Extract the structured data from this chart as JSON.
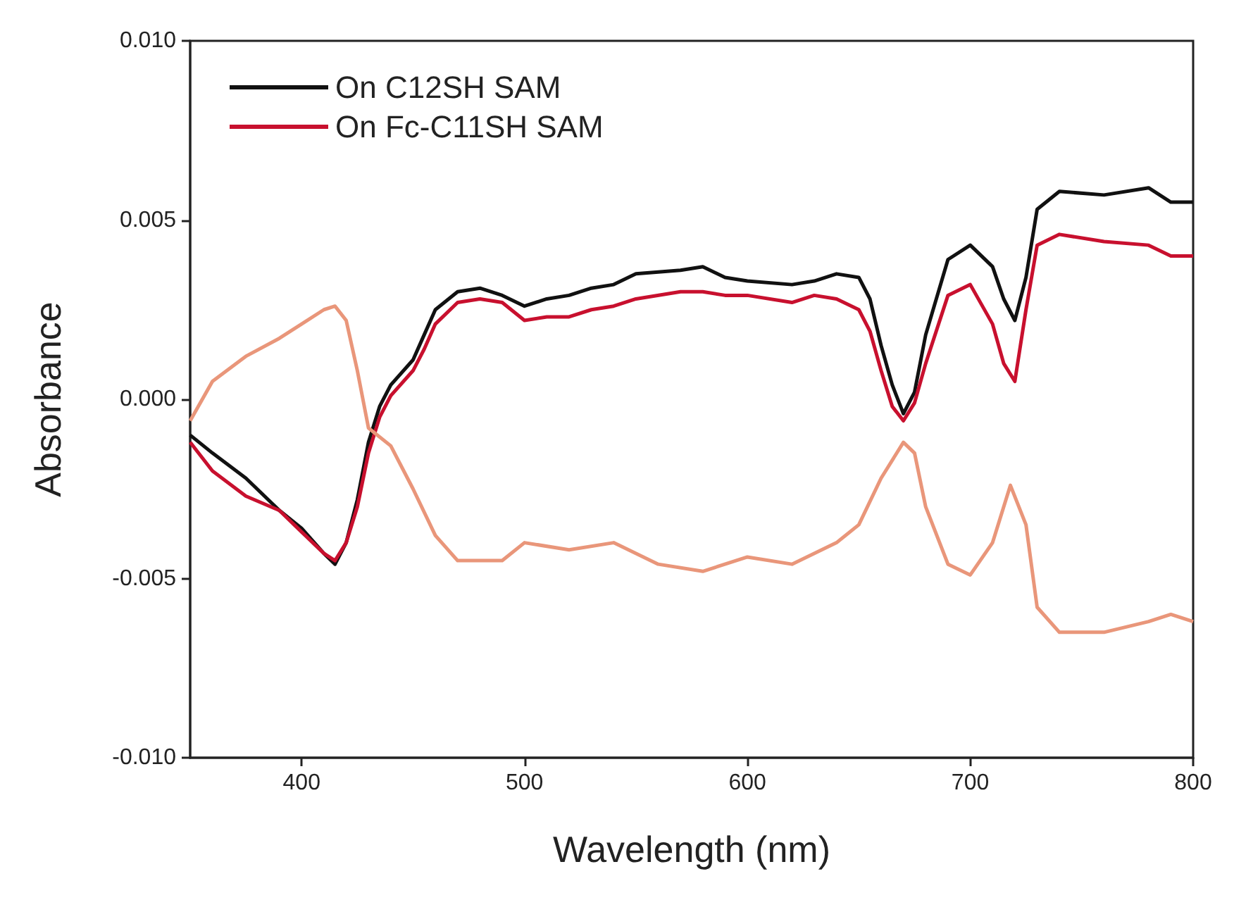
{
  "chart_data": {
    "type": "line",
    "xlabel": "Wavelength (nm)",
    "ylabel": "Absorbance",
    "legend": "top left",
    "grid": false,
    "marker": "none",
    "line_style": "solid",
    "xlim": [
      350,
      800
    ],
    "xticks": [
      400,
      500,
      600,
      700,
      800
    ],
    "ylim": [
      -0.01,
      0.01
    ],
    "yticks": [
      {
        "value": -0.01,
        "label": "-0.010"
      },
      {
        "value": -0.005,
        "label": "-0.005"
      },
      {
        "value": 0,
        "label": "0.000"
      },
      {
        "value": 0.005,
        "label": "0.005"
      },
      {
        "value": 0.01,
        "label": "0.010"
      }
    ],
    "x": [
      350,
      360,
      375,
      390,
      400,
      410,
      415,
      420,
      425,
      430,
      435,
      440,
      450,
      455,
      460,
      470,
      480,
      490,
      500,
      510,
      520,
      530,
      540,
      550,
      570,
      580,
      590,
      600,
      620,
      630,
      640,
      650,
      655,
      660,
      665,
      670,
      675,
      680,
      690,
      700,
      710,
      715,
      720,
      725,
      730,
      740,
      760,
      780,
      790,
      800
    ],
    "series": [
      {
        "name": "On C12SH SAM",
        "color": "#111111",
        "values": [
          -0.001,
          -0.0015,
          -0.0022,
          -0.0031,
          -0.0036,
          -0.0043,
          -0.0046,
          -0.004,
          -0.0028,
          -0.0012,
          -0.0002,
          0.0004,
          0.0011,
          0.0018,
          0.0025,
          0.003,
          0.0031,
          0.0029,
          0.0026,
          0.0028,
          0.0029,
          0.0031,
          0.0032,
          0.0035,
          0.0036,
          0.0037,
          0.0034,
          0.0033,
          0.0032,
          0.0033,
          0.0035,
          0.0034,
          0.0028,
          0.0015,
          0.0004,
          -0.0004,
          0.0002,
          0.0018,
          0.0039,
          0.0043,
          0.0037,
          0.0028,
          0.0022,
          0.0034,
          0.0053,
          0.0058,
          0.0057,
          0.0059,
          0.0055,
          0.0055
        ]
      },
      {
        "name": "On Fc-C11SH SAM",
        "color": "#c8102e",
        "values": [
          -0.0012,
          -0.002,
          -0.0027,
          -0.0031,
          -0.0037,
          -0.0043,
          -0.0045,
          -0.004,
          -0.003,
          -0.0015,
          -0.0005,
          0.0001,
          0.0008,
          0.0014,
          0.0021,
          0.0027,
          0.0028,
          0.0027,
          0.0022,
          0.0023,
          0.0023,
          0.0025,
          0.0026,
          0.0028,
          0.003,
          0.003,
          0.0029,
          0.0029,
          0.0027,
          0.0029,
          0.0028,
          0.0025,
          0.0019,
          0.0008,
          -0.0002,
          -0.0006,
          -0.0001,
          0.001,
          0.0029,
          0.0032,
          0.0021,
          0.001,
          0.0005,
          0.0025,
          0.0043,
          0.0046,
          0.0044,
          0.0043,
          0.004,
          0.004
        ]
      },
      {
        "color": "#e9967a",
        "x": [
          350,
          360,
          375,
          390,
          400,
          410,
          415,
          420,
          425,
          430,
          440,
          450,
          460,
          470,
          490,
          500,
          520,
          540,
          560,
          580,
          600,
          620,
          640,
          650,
          660,
          670,
          675,
          680,
          690,
          700,
          710,
          718,
          725,
          730,
          740,
          760,
          780,
          790,
          800
        ],
        "values": [
          -0.0006,
          0.0005,
          0.0012,
          0.0017,
          0.0021,
          0.0025,
          0.0026,
          0.0022,
          0.0008,
          -0.0008,
          -0.0013,
          -0.0025,
          -0.0038,
          -0.0045,
          -0.0045,
          -0.004,
          -0.0042,
          -0.004,
          -0.0046,
          -0.0048,
          -0.0044,
          -0.0046,
          -0.004,
          -0.0035,
          -0.0022,
          -0.0012,
          -0.0015,
          -0.003,
          -0.0046,
          -0.0049,
          -0.004,
          -0.0024,
          -0.0035,
          -0.0058,
          -0.0065,
          -0.0065,
          -0.0062,
          -0.006,
          -0.0062
        ]
      }
    ]
  }
}
